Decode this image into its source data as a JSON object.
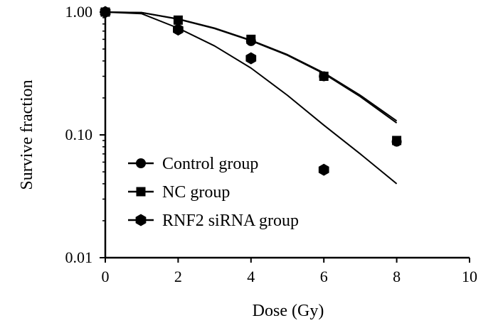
{
  "chart_data": {
    "type": "scatter",
    "title": "",
    "xlabel": "Dose (Gy)",
    "ylabel": "Survive fraction",
    "xlim": [
      0,
      10
    ],
    "ylim": [
      0.01,
      1.0
    ],
    "yscale": "log",
    "x_ticks": [
      0,
      2,
      4,
      6,
      8,
      10
    ],
    "x_tick_labels": [
      "0",
      "2",
      "4",
      "6",
      "8",
      "10"
    ],
    "y_ticks": [
      0.01,
      0.1,
      1.0
    ],
    "y_tick_labels": [
      "0.01",
      "0.10",
      "1.00"
    ],
    "legend_position": "bottom-left",
    "series": [
      {
        "name": "Control group",
        "marker": "circle",
        "x": [
          0,
          2,
          4,
          6,
          8
        ],
        "y": [
          1.0,
          0.72,
          0.58,
          0.3,
          0.088
        ],
        "fit_x": [
          0,
          1,
          2,
          3,
          4,
          5,
          6,
          7,
          8
        ],
        "fit_y": [
          1.0,
          0.99,
          0.88,
          0.74,
          0.59,
          0.45,
          0.32,
          0.21,
          0.13
        ]
      },
      {
        "name": "NC group",
        "marker": "square",
        "x": [
          0,
          2,
          4,
          6,
          8
        ],
        "y": [
          1.0,
          0.86,
          0.6,
          0.3,
          0.09
        ],
        "fit_x": [
          0,
          1,
          2,
          3,
          4,
          5,
          6,
          7,
          8
        ],
        "fit_y": [
          1.0,
          0.99,
          0.875,
          0.735,
          0.585,
          0.445,
          0.315,
          0.205,
          0.125
        ]
      },
      {
        "name": "RNF2 siRNA group",
        "marker": "hexagon",
        "x": [
          0,
          2,
          4,
          6
        ],
        "y": [
          1.0,
          0.72,
          0.42,
          0.052
        ],
        "fit_x": [
          0,
          1,
          2,
          3,
          4,
          5,
          6,
          7,
          8
        ],
        "fit_y": [
          1.0,
          0.97,
          0.74,
          0.53,
          0.35,
          0.21,
          0.12,
          0.07,
          0.04
        ]
      }
    ]
  }
}
